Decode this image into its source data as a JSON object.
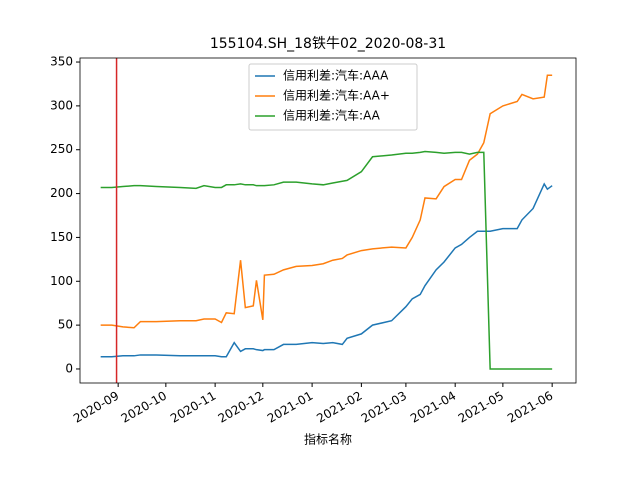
{
  "chart_data": {
    "type": "line",
    "title": "155104.SH_18铁牛02_2020-08-31",
    "x_label": "指标名称",
    "x": [
      "2020-08-21",
      "2020-08-28",
      "2020-09-04",
      "2020-09-11",
      "2020-09-15",
      "2020-09-25",
      "2020-10-10",
      "2020-10-20",
      "2020-10-25",
      "2020-11-01",
      "2020-11-05",
      "2020-11-08",
      "2020-11-13",
      "2020-11-17",
      "2020-11-20",
      "2020-11-25",
      "2020-11-27",
      "2020-12-01",
      "2020-12-02",
      "2020-12-08",
      "2020-12-14",
      "2020-12-22",
      "2021-01-01",
      "2021-01-08",
      "2021-01-14",
      "2021-01-20",
      "2021-01-23",
      "2021-02-01",
      "2021-02-08",
      "2021-02-20",
      "2021-03-01",
      "2021-03-05",
      "2021-03-10",
      "2021-03-13",
      "2021-03-20",
      "2021-03-25",
      "2021-04-01",
      "2021-04-05",
      "2021-04-10",
      "2021-04-15",
      "2021-04-19",
      "2021-04-23",
      "2021-05-01",
      "2021-05-10",
      "2021-05-13",
      "2021-05-20",
      "2021-05-27",
      "2021-05-29",
      "2021-06-01"
    ],
    "series": [
      {
        "name": "信用利差:汽车:AAA",
        "color": "#1f77b4",
        "values": [
          14,
          14,
          15,
          15,
          16,
          16,
          15,
          15,
          15,
          15,
          14,
          14,
          30,
          20,
          23,
          23,
          22,
          21,
          22,
          22,
          28,
          28,
          30,
          29,
          30,
          28,
          35,
          40,
          50,
          55,
          71,
          80,
          85,
          95,
          113,
          122,
          138,
          142,
          150,
          157,
          157,
          157,
          160,
          160,
          170,
          183,
          211,
          205,
          209
        ]
      },
      {
        "name": "信用利差:汽车:AA+",
        "color": "#ff7f0e",
        "values": [
          50,
          50,
          48,
          47,
          54,
          54,
          55,
          55,
          57,
          57,
          53,
          64,
          63,
          124,
          70,
          72,
          101,
          56,
          107,
          108,
          113,
          117,
          118,
          120,
          124,
          126,
          130,
          135,
          137,
          139,
          138,
          150,
          170,
          195,
          194,
          208,
          216,
          216,
          238,
          245,
          258,
          291,
          300,
          305,
          313,
          308,
          310,
          335,
          335
        ]
      },
      {
        "name": "信用利差:汽车:AA",
        "color": "#2ca02c",
        "values": [
          207,
          207,
          208,
          209,
          209,
          208,
          207,
          206,
          209,
          207,
          207,
          210,
          210,
          211,
          210,
          210,
          209,
          209,
          209,
          210,
          213,
          213,
          211,
          210,
          212,
          214,
          215,
          225,
          242,
          244,
          246,
          246,
          247,
          248,
          247,
          246,
          247,
          247,
          245,
          247,
          247,
          0,
          0,
          0,
          0,
          0,
          0,
          0,
          0
        ]
      }
    ],
    "vline": {
      "x": "2020-08-31",
      "color": "#d62728"
    },
    "xlim": [
      "2020-08-08",
      "2021-06-16"
    ],
    "xticks": [
      {
        "value": "2020-09-01",
        "label": "2020-09"
      },
      {
        "value": "2020-10-01",
        "label": "2020-10"
      },
      {
        "value": "2020-11-01",
        "label": "2020-11"
      },
      {
        "value": "2020-12-01",
        "label": "2020-12"
      },
      {
        "value": "2021-01-01",
        "label": "2021-01"
      },
      {
        "value": "2021-02-01",
        "label": "2021-02"
      },
      {
        "value": "2021-03-01",
        "label": "2021-03"
      },
      {
        "value": "2021-04-01",
        "label": "2021-04"
      },
      {
        "value": "2021-05-01",
        "label": "2021-05"
      },
      {
        "value": "2021-06-01",
        "label": "2021-06"
      }
    ],
    "ylim": [
      -16,
      354.6
    ],
    "yticks": [
      0,
      50,
      100,
      150,
      200,
      250,
      300,
      350
    ],
    "legend": "upper center"
  }
}
